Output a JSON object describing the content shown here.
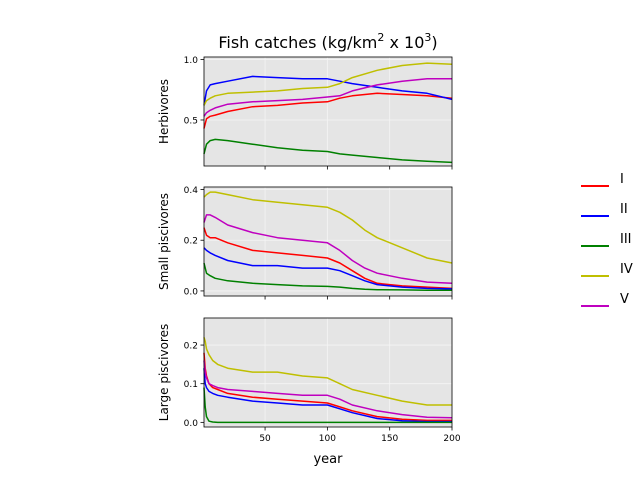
{
  "figure": {
    "title_main": "Fish catches (kg/km",
    "title_sup1": "2",
    "title_mid": " x 10",
    "title_sup2": "3",
    "title_end": ")",
    "xlabel": "year"
  },
  "legend": {
    "placement": "right",
    "entries": [
      {
        "label": "I",
        "color": "#ff0000"
      },
      {
        "label": "II",
        "color": "#0000ff"
      },
      {
        "label": "III",
        "color": "#008000"
      },
      {
        "label": "IV",
        "color": "#bfbf00"
      },
      {
        "label": "V",
        "color": "#bf00bf"
      }
    ]
  },
  "chart_data": [
    {
      "type": "line",
      "title": "Fish catches (kg/km² x 10³)",
      "xlabel": "",
      "ylabel": "Herbivores",
      "xlim": [
        1,
        200
      ],
      "ylim": [
        0.12,
        1.02
      ],
      "xticks": [
        50,
        100,
        150,
        200
      ],
      "yticks": [
        0.5,
        1.0
      ],
      "ytick_labels": [
        "0.5",
        "1.0"
      ],
      "grid": true,
      "x": [
        1,
        3,
        6,
        10,
        20,
        40,
        60,
        80,
        100,
        110,
        120,
        140,
        160,
        180,
        200
      ],
      "series": [
        {
          "name": "I",
          "color": "#ff0000",
          "values": [
            0.43,
            0.51,
            0.53,
            0.54,
            0.57,
            0.61,
            0.62,
            0.64,
            0.65,
            0.68,
            0.7,
            0.72,
            0.71,
            0.7,
            0.68
          ]
        },
        {
          "name": "II",
          "color": "#0000ff",
          "values": [
            0.62,
            0.74,
            0.79,
            0.8,
            0.82,
            0.86,
            0.85,
            0.84,
            0.84,
            0.82,
            0.8,
            0.77,
            0.74,
            0.72,
            0.67
          ]
        },
        {
          "name": "III",
          "color": "#008000",
          "values": [
            0.22,
            0.3,
            0.33,
            0.34,
            0.33,
            0.3,
            0.27,
            0.25,
            0.24,
            0.22,
            0.21,
            0.19,
            0.17,
            0.16,
            0.15
          ]
        },
        {
          "name": "IV",
          "color": "#bfbf00",
          "values": [
            0.62,
            0.66,
            0.68,
            0.7,
            0.72,
            0.73,
            0.74,
            0.76,
            0.77,
            0.8,
            0.85,
            0.91,
            0.95,
            0.97,
            0.96
          ]
        },
        {
          "name": "V",
          "color": "#bf00bf",
          "values": [
            0.53,
            0.56,
            0.58,
            0.6,
            0.63,
            0.65,
            0.66,
            0.67,
            0.69,
            0.7,
            0.74,
            0.79,
            0.82,
            0.84,
            0.84
          ]
        }
      ]
    },
    {
      "type": "line",
      "xlabel": "",
      "ylabel": "Small piscivores",
      "xlim": [
        1,
        200
      ],
      "ylim": [
        -0.02,
        0.41
      ],
      "xticks": [
        50,
        100,
        150,
        200
      ],
      "yticks": [
        0.0,
        0.2,
        0.4
      ],
      "ytick_labels": [
        "0.0",
        "0.2",
        "0.4"
      ],
      "grid": true,
      "x": [
        1,
        3,
        6,
        10,
        20,
        40,
        60,
        80,
        100,
        110,
        120,
        130,
        140,
        160,
        180,
        200
      ],
      "series": [
        {
          "name": "I",
          "color": "#ff0000",
          "values": [
            0.25,
            0.22,
            0.21,
            0.21,
            0.19,
            0.16,
            0.15,
            0.14,
            0.13,
            0.11,
            0.08,
            0.05,
            0.03,
            0.02,
            0.015,
            0.01
          ]
        },
        {
          "name": "II",
          "color": "#0000ff",
          "values": [
            0.17,
            0.16,
            0.15,
            0.14,
            0.12,
            0.1,
            0.1,
            0.09,
            0.09,
            0.08,
            0.06,
            0.04,
            0.025,
            0.015,
            0.01,
            0.008
          ]
        },
        {
          "name": "III",
          "color": "#008000",
          "values": [
            0.11,
            0.07,
            0.06,
            0.05,
            0.04,
            0.03,
            0.025,
            0.02,
            0.018,
            0.015,
            0.01,
            0.007,
            0.005,
            0.004,
            0.003,
            0.003
          ]
        },
        {
          "name": "IV",
          "color": "#bfbf00",
          "values": [
            0.37,
            0.38,
            0.39,
            0.39,
            0.38,
            0.36,
            0.35,
            0.34,
            0.33,
            0.31,
            0.28,
            0.24,
            0.21,
            0.17,
            0.13,
            0.11
          ]
        },
        {
          "name": "V",
          "color": "#bf00bf",
          "values": [
            0.27,
            0.3,
            0.3,
            0.29,
            0.26,
            0.23,
            0.21,
            0.2,
            0.19,
            0.16,
            0.12,
            0.09,
            0.07,
            0.05,
            0.035,
            0.03
          ]
        }
      ]
    },
    {
      "type": "line",
      "xlabel": "year",
      "ylabel": "Large piscivores",
      "xlim": [
        1,
        200
      ],
      "ylim": [
        -0.012,
        0.27
      ],
      "xticks": [
        50,
        100,
        150,
        200
      ],
      "xtick_labels": [
        "50",
        "100",
        "150",
        "200"
      ],
      "yticks": [
        0.0,
        0.1,
        0.2
      ],
      "ytick_labels": [
        "0.0",
        "0.1",
        "0.2"
      ],
      "grid": true,
      "x": [
        1,
        2,
        3,
        5,
        8,
        12,
        20,
        40,
        60,
        80,
        100,
        110,
        120,
        140,
        160,
        180,
        200
      ],
      "series": [
        {
          "name": "I",
          "color": "#ff0000",
          "values": [
            0.18,
            0.14,
            0.12,
            0.1,
            0.09,
            0.085,
            0.075,
            0.065,
            0.06,
            0.055,
            0.05,
            0.04,
            0.03,
            0.015,
            0.008,
            0.005,
            0.005
          ]
        },
        {
          "name": "II",
          "color": "#0000ff",
          "values": [
            0.14,
            0.1,
            0.09,
            0.08,
            0.075,
            0.07,
            0.065,
            0.055,
            0.05,
            0.045,
            0.045,
            0.035,
            0.025,
            0.01,
            0.004,
            0.002,
            0.002
          ]
        },
        {
          "name": "III",
          "color": "#008000",
          "values": [
            0.09,
            0.04,
            0.015,
            0.003,
            0.001,
            0.0,
            0.0,
            0.0,
            0.0,
            0.0,
            0.0,
            0.0,
            0.0,
            0.0,
            0.0,
            0.0,
            0.0
          ]
        },
        {
          "name": "IV",
          "color": "#bfbf00",
          "values": [
            0.22,
            0.21,
            0.19,
            0.175,
            0.16,
            0.15,
            0.14,
            0.13,
            0.13,
            0.12,
            0.115,
            0.1,
            0.085,
            0.07,
            0.055,
            0.045,
            0.045
          ]
        },
        {
          "name": "V",
          "color": "#bf00bf",
          "values": [
            0.16,
            0.13,
            0.115,
            0.1,
            0.095,
            0.09,
            0.085,
            0.08,
            0.075,
            0.07,
            0.07,
            0.06,
            0.045,
            0.03,
            0.02,
            0.013,
            0.012
          ]
        }
      ]
    }
  ]
}
